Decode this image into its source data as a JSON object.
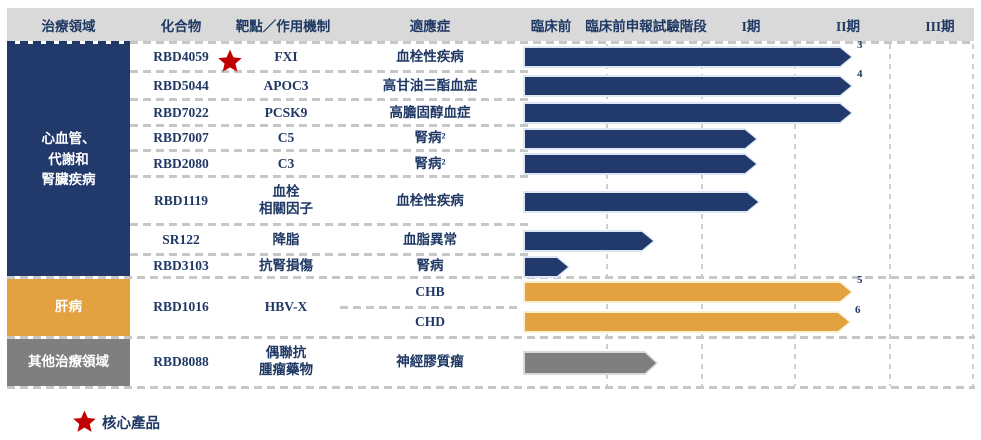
{
  "colors": {
    "navy": "#213A6B",
    "navy_border": "#DCE6F4",
    "orange": "#E3A23F",
    "orange_border": "#FBEFD2",
    "gray": "#7F7F7F",
    "gray_border": "#D9D9D9",
    "header_bg": "#D9D9D9",
    "text": "#1F3864",
    "star": "#C00000"
  },
  "header": {
    "columns": [
      "治療領域",
      "化合物",
      "靶點／作用機制",
      "適應症",
      "臨床前",
      "臨床前申報試驗階段",
      "I期",
      "II期",
      "III期"
    ]
  },
  "legend": {
    "core_product_label": "核心產品"
  },
  "chart_data": {
    "type": "table",
    "stages": [
      "臨床前",
      "臨床前申報試驗階段",
      "I期",
      "II期",
      "III期"
    ],
    "stage_scale_note": "stage_end is measured on a 0-5 axis where each integer step is one stage column boundary",
    "areas": [
      {
        "label": "心血管、\n代謝和\n腎臟疾病",
        "color_key": "navy"
      },
      {
        "label": "肝病",
        "color_key": "orange"
      },
      {
        "label": "其他治療領域",
        "color_key": "gray"
      }
    ],
    "rows": [
      {
        "compound": "RBD4059",
        "core": true,
        "target": "FXI",
        "indication": "血栓性疾病",
        "stage_end": 3.61,
        "note": "3",
        "color_key": "navy"
      },
      {
        "compound": "RBD5044",
        "core": false,
        "target": "APOC3",
        "indication": "高甘油三酯血症",
        "stage_end": 3.61,
        "note": "4",
        "color_key": "navy"
      },
      {
        "compound": "RBD7022",
        "core": false,
        "target": "PCSK9",
        "indication": "高膽固醇血症",
        "stage_end": 3.61,
        "note": "",
        "color_key": "navy"
      },
      {
        "compound": "RBD7007",
        "core": false,
        "target": "C5",
        "indication": "腎病²",
        "stage_end": 2.6,
        "note": "",
        "color_key": "navy"
      },
      {
        "compound": "RBD2080",
        "core": false,
        "target": "C3",
        "indication": "腎病²",
        "stage_end": 2.6,
        "note": "",
        "color_key": "navy"
      },
      {
        "compound": "RBD1119",
        "core": false,
        "target": "血栓\n相關因子",
        "indication": "血栓性疾病",
        "stage_end": 2.62,
        "note": "",
        "color_key": "navy"
      },
      {
        "compound": "SR122",
        "core": false,
        "target": "降脂",
        "indication": "血脂異常",
        "stage_end": 1.51,
        "note": "",
        "color_key": "navy"
      },
      {
        "compound": "RBD3103",
        "core": false,
        "target": "抗腎損傷",
        "indication": "腎病",
        "stage_end": 0.56,
        "note": "",
        "color_key": "navy"
      },
      {
        "compound": "RBD1016",
        "core": false,
        "target": "HBV-X",
        "sub_rows": [
          {
            "indication": "CHB",
            "stage_end": 3.61,
            "note": "5",
            "color_key": "orange"
          },
          {
            "indication": "CHD",
            "stage_end": 3.59,
            "note": "6",
            "color_key": "orange"
          }
        ]
      },
      {
        "compound": "RBD8088",
        "core": false,
        "target": "偶聯抗\n腫瘤藥物",
        "indication": "神經膠質瘤",
        "stage_end": 1.54,
        "note": "",
        "color_key": "gray"
      }
    ]
  }
}
